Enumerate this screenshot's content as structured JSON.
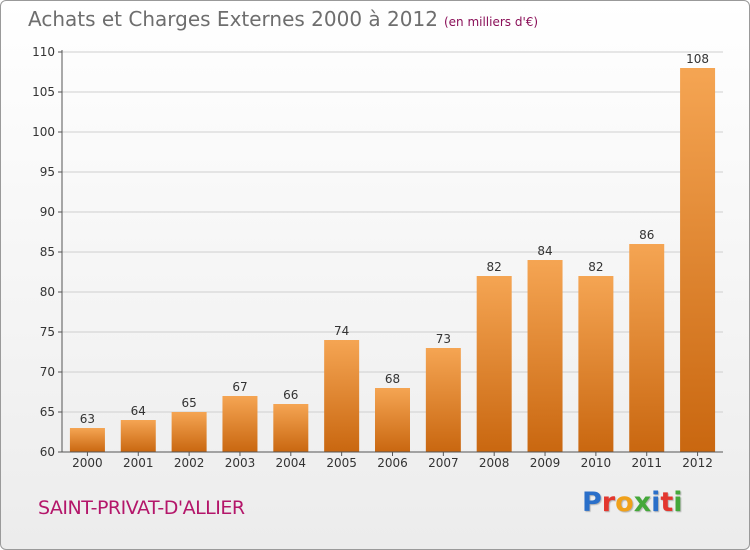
{
  "title": "Achats et Charges Externes 2000 à 2012",
  "unit": "(en milliers d'€)",
  "place_name": "SAINT-PRIVAT-D'ALLIER",
  "brand": {
    "text": "Proxiti",
    "letter_colors": [
      "#2a6fc9",
      "#e3372e",
      "#f0a11a",
      "#44a83a",
      "#2a6fc9",
      "#e3372e",
      "#44a83a"
    ]
  },
  "colors": {
    "bar_top": "#f5a553",
    "bar_bottom": "#c96710",
    "axis": "#555555",
    "grid": "#cfcfcf"
  },
  "chart_data": {
    "type": "bar",
    "categories": [
      "2000",
      "2001",
      "2002",
      "2003",
      "2004",
      "2005",
      "2006",
      "2007",
      "2008",
      "2009",
      "2010",
      "2011",
      "2012"
    ],
    "values": [
      63,
      64,
      65,
      67,
      66,
      74,
      68,
      73,
      82,
      84,
      82,
      86,
      108
    ],
    "ylim": [
      60,
      110
    ],
    "yticks": [
      60,
      65,
      70,
      75,
      80,
      85,
      90,
      95,
      100,
      105,
      110
    ],
    "grid": "horizontal",
    "data_labels": true
  }
}
